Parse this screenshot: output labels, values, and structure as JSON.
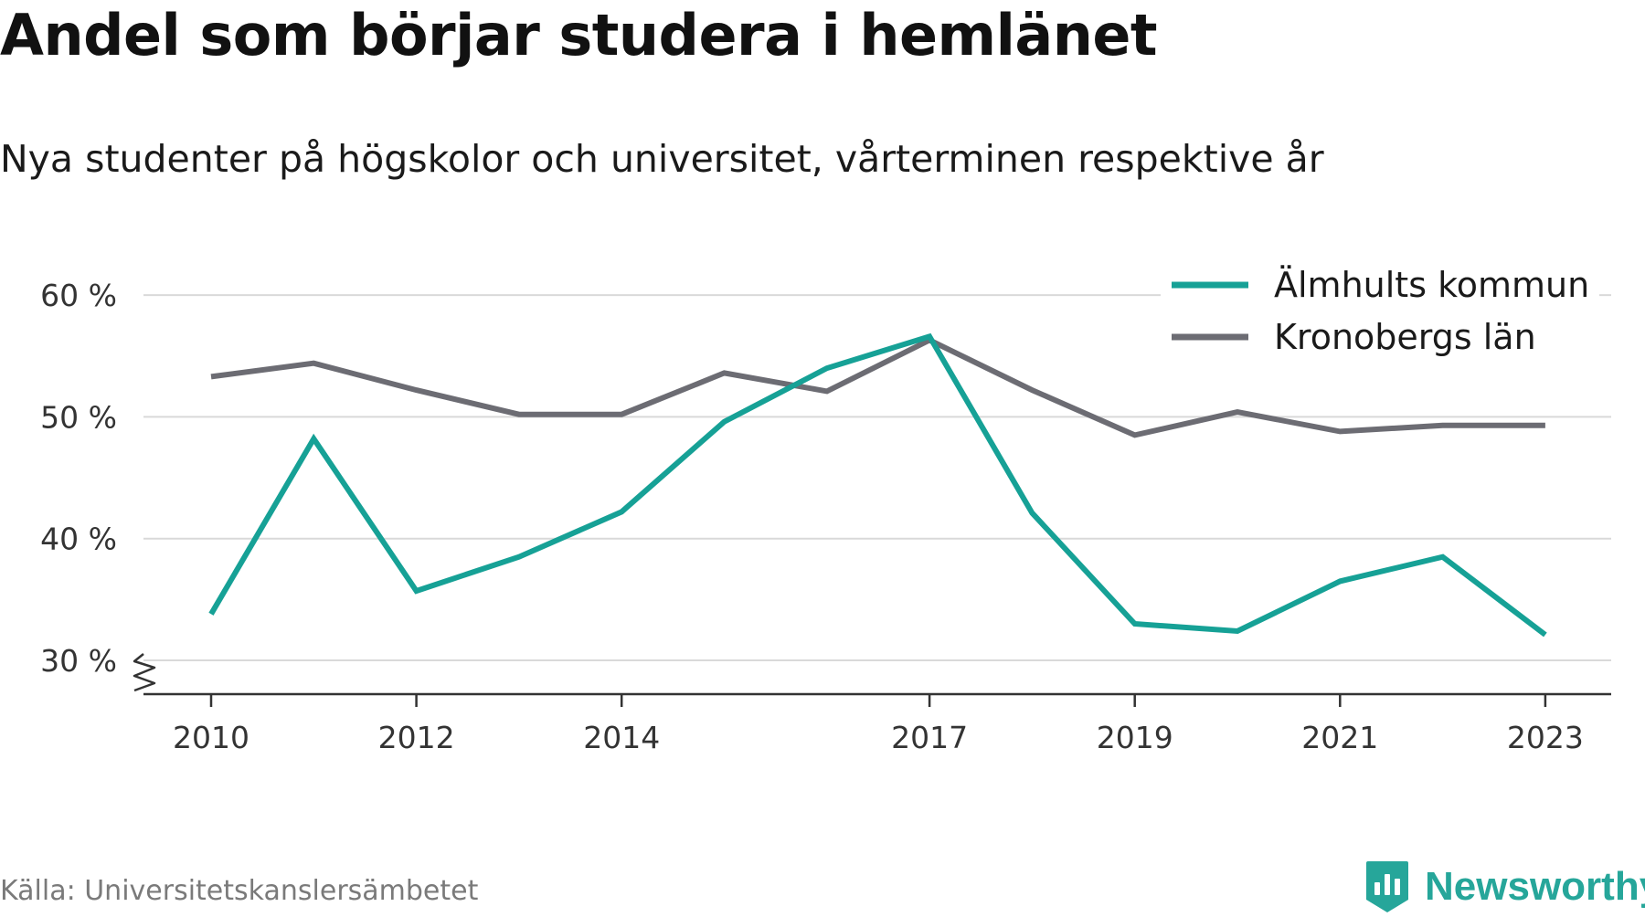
{
  "title": "Andel som börjar studera i hemlänet",
  "subtitle": "Nya studenter på högskolor och universitet, vårterminen respektive år",
  "source": "Källa: Universitetskanslersämbetet",
  "brand": {
    "name": "Newsworthy",
    "icon": "newsworthy-logo-icon",
    "color": "#26a69a"
  },
  "chart_data": {
    "type": "line",
    "x": [
      2010,
      2011,
      2012,
      2013,
      2014,
      2015,
      2016,
      2017,
      2018,
      2019,
      2020,
      2021,
      2022,
      2023
    ],
    "x_tick_labels": [
      "2010",
      "2012",
      "2014",
      "2017",
      "2019",
      "2021",
      "2023"
    ],
    "y_tick_values": [
      30,
      40,
      50,
      60
    ],
    "y_tick_labels": [
      "30 %",
      "40 %",
      "50 %",
      "60 %"
    ],
    "ylim": [
      30,
      60
    ],
    "y_axis_break": true,
    "grid": "horizontal",
    "legend_position": "top-right",
    "series": [
      {
        "name": "Älmhults kommun",
        "color": "#16a196",
        "values": [
          33.8,
          48.2,
          35.7,
          38.5,
          42.2,
          49.6,
          54.0,
          56.6,
          42.1,
          33.0,
          32.4,
          36.5,
          38.5,
          32.1
        ]
      },
      {
        "name": "Kronobergs län",
        "color": "#6c6c73",
        "values": [
          53.3,
          54.4,
          52.2,
          50.2,
          50.2,
          53.6,
          52.1,
          56.3,
          52.2,
          48.5,
          50.4,
          48.8,
          49.3,
          49.3
        ]
      }
    ],
    "colors": {
      "grid": "#d9d9d9",
      "axis": "#333333",
      "tick_text": "#333333"
    }
  }
}
